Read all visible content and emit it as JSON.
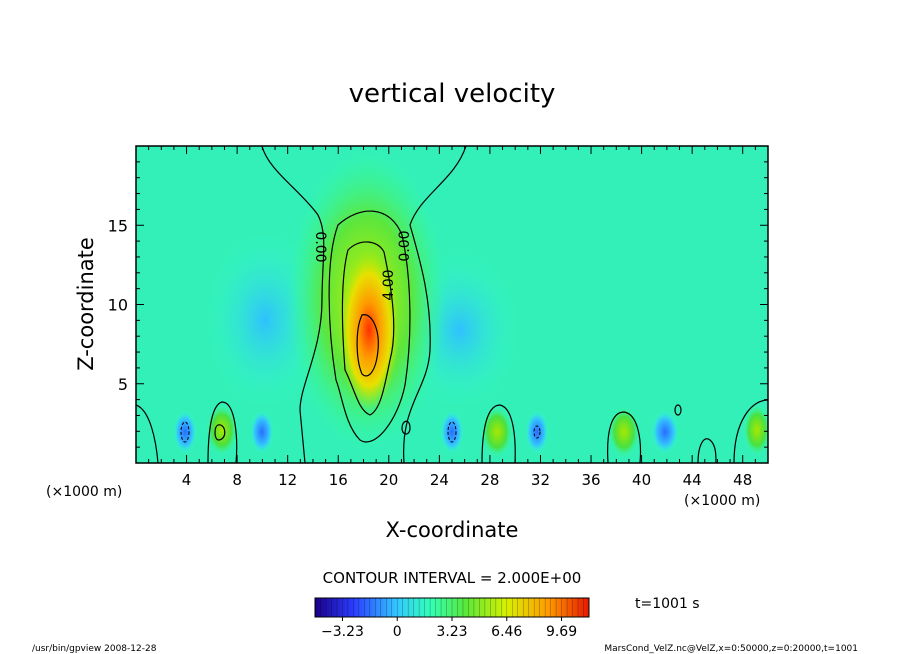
{
  "chart_data": {
    "type": "heatmap",
    "title": "vertical velocity",
    "xlabel": "X-coordinate",
    "ylabel": "Z-coordinate",
    "x_unit": "(×1000 m)",
    "xlim": [
      0,
      50
    ],
    "ylim": [
      0,
      20
    ],
    "x_ticks": [
      "4",
      "8",
      "12",
      "16",
      "20",
      "24",
      "28",
      "32",
      "36",
      "40",
      "44",
      "48"
    ],
    "y_ticks": [
      "5",
      "10",
      "15"
    ],
    "contour_labels": [
      "0.00",
      "0.00",
      "4.00"
    ],
    "contour_interval": "CONTOUR INTERVAL = 2.000E+00",
    "time_label": "t=1001 s",
    "colorbar": {
      "range": [
        -4.85,
        11.31
      ],
      "ticks": [
        "−3.23",
        "0",
        "3.23",
        "6.46",
        "9.69"
      ],
      "colors": [
        "#1a0088",
        "#2a3cff",
        "#33c8ff",
        "#33ffb8",
        "#59e83a",
        "#d8f000",
        "#ff9c00",
        "#e61800"
      ]
    },
    "features": [
      {
        "name": "central updraft",
        "x": 18.2,
        "z": 8,
        "max_value": 9.7
      },
      {
        "name": "surface cell",
        "x": 7,
        "z": 2,
        "max_value": 3.5
      },
      {
        "name": "surface cell",
        "x": 29,
        "z": 2,
        "max_value": 3.0
      },
      {
        "name": "surface cell",
        "x": 38.5,
        "z": 2,
        "max_value": 3.0
      },
      {
        "name": "surface cell",
        "x": 49,
        "z": 2,
        "max_value": 2.5
      }
    ]
  },
  "footer": {
    "left": "/usr/bin/gpview   2008-12-28",
    "right": "MarsCond_VelZ.nc@VelZ,x=0:50000,z=0:20000,t=1001"
  }
}
